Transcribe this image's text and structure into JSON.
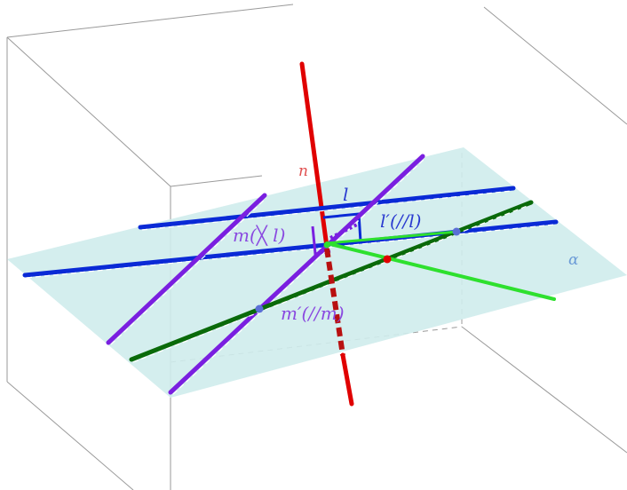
{
  "labels": {
    "n": "n",
    "l": "l",
    "l_prime": "l′(//l)",
    "m": "m(╳ l)",
    "m_prime": "m′(//m)",
    "alpha": "α"
  },
  "colors": {
    "background": "#ffffff",
    "box_edge": "#9a9a9a",
    "plane_fill": "#cfecec",
    "line_n": "#e00000",
    "line_l": "#0a2ad6",
    "line_m": "#7a1fe0",
    "line_m_prime": "#0a6a0a",
    "segment_green": "#2ee02e",
    "point_blue": "#5a6fd6",
    "point_red": "#e00000",
    "label_n": "#e05050",
    "label_l": "#2a3ad0",
    "label_m": "#8a4ae0",
    "label_alpha": "#6a9ad6"
  }
}
